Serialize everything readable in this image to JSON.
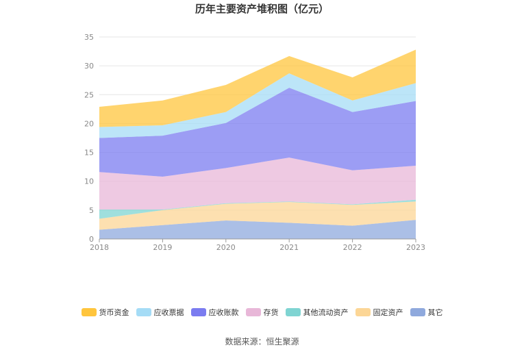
{
  "chart_data": {
    "type": "area",
    "stacked": true,
    "title": "历年主要资产堆积图（亿元）",
    "categories": [
      "2018",
      "2019",
      "2020",
      "2021",
      "2022",
      "2023"
    ],
    "ylim": [
      0,
      35
    ],
    "yticks": [
      "0",
      "5",
      "10",
      "15",
      "20",
      "25",
      "30",
      "35"
    ],
    "series": [
      {
        "name": "其它",
        "color": "#8fa9dd",
        "values": [
          1.6,
          2.4,
          3.2,
          2.8,
          2.3,
          3.3
        ]
      },
      {
        "name": "固定资产",
        "color": "#fcd696",
        "values": [
          1.9,
          2.6,
          2.9,
          3.6,
          3.6,
          3.2
        ]
      },
      {
        "name": "其他流动资产",
        "color": "#7fd4d2",
        "values": [
          1.6,
          0.1,
          0.1,
          0.1,
          0.1,
          0.3
        ]
      },
      {
        "name": "存货",
        "color": "#e8b7d8",
        "values": [
          6.5,
          5.7,
          6.1,
          7.6,
          5.9,
          5.9
        ]
      },
      {
        "name": "应收账款",
        "color": "#7b7cf0",
        "values": [
          5.9,
          7.1,
          7.8,
          12.1,
          10.1,
          11.2
        ]
      },
      {
        "name": "应收票据",
        "color": "#a5dcf6",
        "values": [
          1.9,
          1.8,
          1.9,
          2.5,
          2.0,
          3.1
        ]
      },
      {
        "name": "货币资金",
        "color": "#ffc53d",
        "values": [
          3.5,
          4.3,
          4.7,
          3.0,
          4.0,
          5.8
        ]
      }
    ],
    "legend": [
      "货币资金",
      "应收票据",
      "应收账款",
      "存货",
      "其他流动资产",
      "固定资产",
      "其它"
    ]
  },
  "source": "数据来源：恒生聚源"
}
